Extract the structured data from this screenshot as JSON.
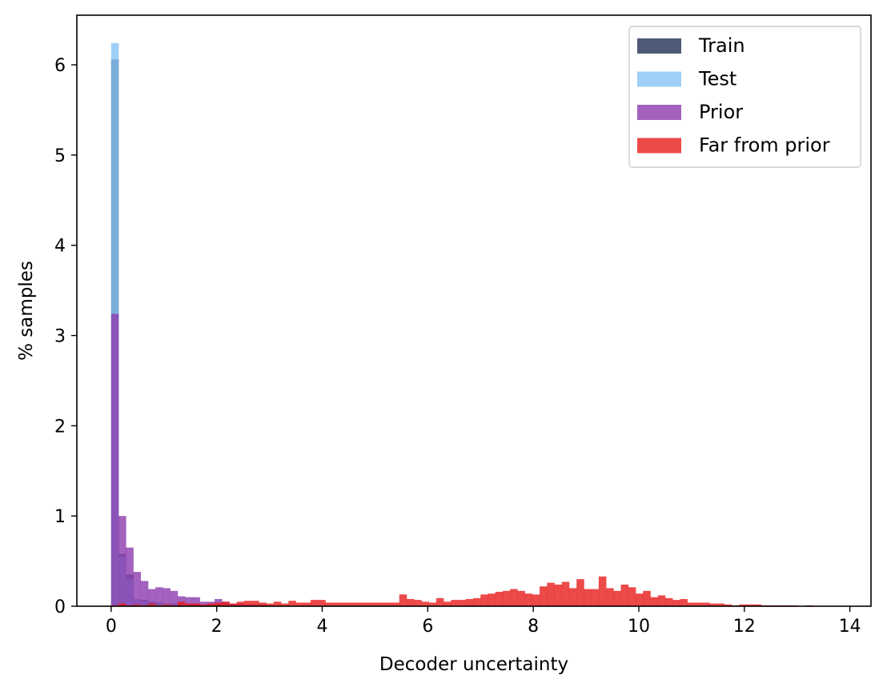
{
  "chart_data": {
    "type": "histogram",
    "xlabel": "Decoder uncertainty",
    "ylabel": "% samples",
    "xlim": [
      -0.65,
      14.4
    ],
    "ylim": [
      0,
      6.55
    ],
    "xticks": [
      0,
      2,
      4,
      6,
      8,
      10,
      12,
      14
    ],
    "yticks": [
      0,
      1,
      2,
      3,
      4,
      5,
      6
    ],
    "xtick_labels": [
      "0",
      "2",
      "4",
      "6",
      "8",
      "10",
      "12",
      "14"
    ],
    "ytick_labels": [
      "0",
      "1",
      "2",
      "3",
      "4",
      "5",
      "6"
    ],
    "grid": false,
    "legend_position": "top-right",
    "bin_width": 0.14,
    "series": [
      {
        "name": "Train",
        "color": "#1c2b4f",
        "opacity": 0.78,
        "bin_start": 0.0,
        "values": [
          6.06,
          0.58,
          0.35,
          0.08,
          0.07,
          0.05,
          0.04,
          0.03,
          0.03,
          0.02,
          0.02,
          0.02,
          0.01,
          0.01
        ]
      },
      {
        "name": "Test",
        "color": "#87c2f4",
        "opacity": 0.8,
        "bin_start": 0.0,
        "values": [
          6.24,
          0.55,
          0.3,
          0.08,
          0.06,
          0.04,
          0.03,
          0.03,
          0.02,
          0.02,
          0.02,
          0.01,
          0.01
        ]
      },
      {
        "name": "Prior",
        "color": "#8e3fb0",
        "opacity": 0.82,
        "bin_start": 0.0,
        "values": [
          3.24,
          1.0,
          0.65,
          0.38,
          0.28,
          0.19,
          0.21,
          0.2,
          0.17,
          0.11,
          0.1,
          0.1,
          0.05,
          0.05,
          0.08,
          0.05,
          0.03,
          0.03,
          0.02,
          0.02,
          0.02,
          0.01
        ]
      },
      {
        "name": "Far from prior",
        "color": "#e71c1c",
        "opacity": 0.8,
        "bin_start": 0.0,
        "values": [
          0.01,
          0.03,
          0.01,
          0.02,
          0.01,
          0.03,
          0.01,
          0.02,
          0.01,
          0.05,
          0.03,
          0.03,
          0.02,
          0.03,
          0.04,
          0.05,
          0.03,
          0.05,
          0.06,
          0.06,
          0.04,
          0.03,
          0.05,
          0.03,
          0.06,
          0.04,
          0.04,
          0.07,
          0.07,
          0.04,
          0.04,
          0.04,
          0.04,
          0.04,
          0.04,
          0.04,
          0.04,
          0.04,
          0.04,
          0.13,
          0.08,
          0.07,
          0.05,
          0.04,
          0.09,
          0.05,
          0.07,
          0.07,
          0.08,
          0.09,
          0.13,
          0.14,
          0.16,
          0.17,
          0.19,
          0.17,
          0.14,
          0.13,
          0.22,
          0.26,
          0.24,
          0.27,
          0.2,
          0.3,
          0.19,
          0.19,
          0.33,
          0.2,
          0.17,
          0.24,
          0.21,
          0.14,
          0.17,
          0.1,
          0.12,
          0.09,
          0.07,
          0.08,
          0.04,
          0.04,
          0.04,
          0.03,
          0.03,
          0.02,
          0.01,
          0.02,
          0.02,
          0.02,
          0.01,
          0.01,
          0.01,
          0.01,
          0.01,
          0.0,
          0.01,
          0.0,
          0.0,
          0.0,
          0.0,
          0.0,
          0.0,
          0.0,
          0.0,
          0.0,
          0.0,
          0.0,
          0.0,
          0.0,
          0.0,
          0.0
        ]
      }
    ]
  }
}
